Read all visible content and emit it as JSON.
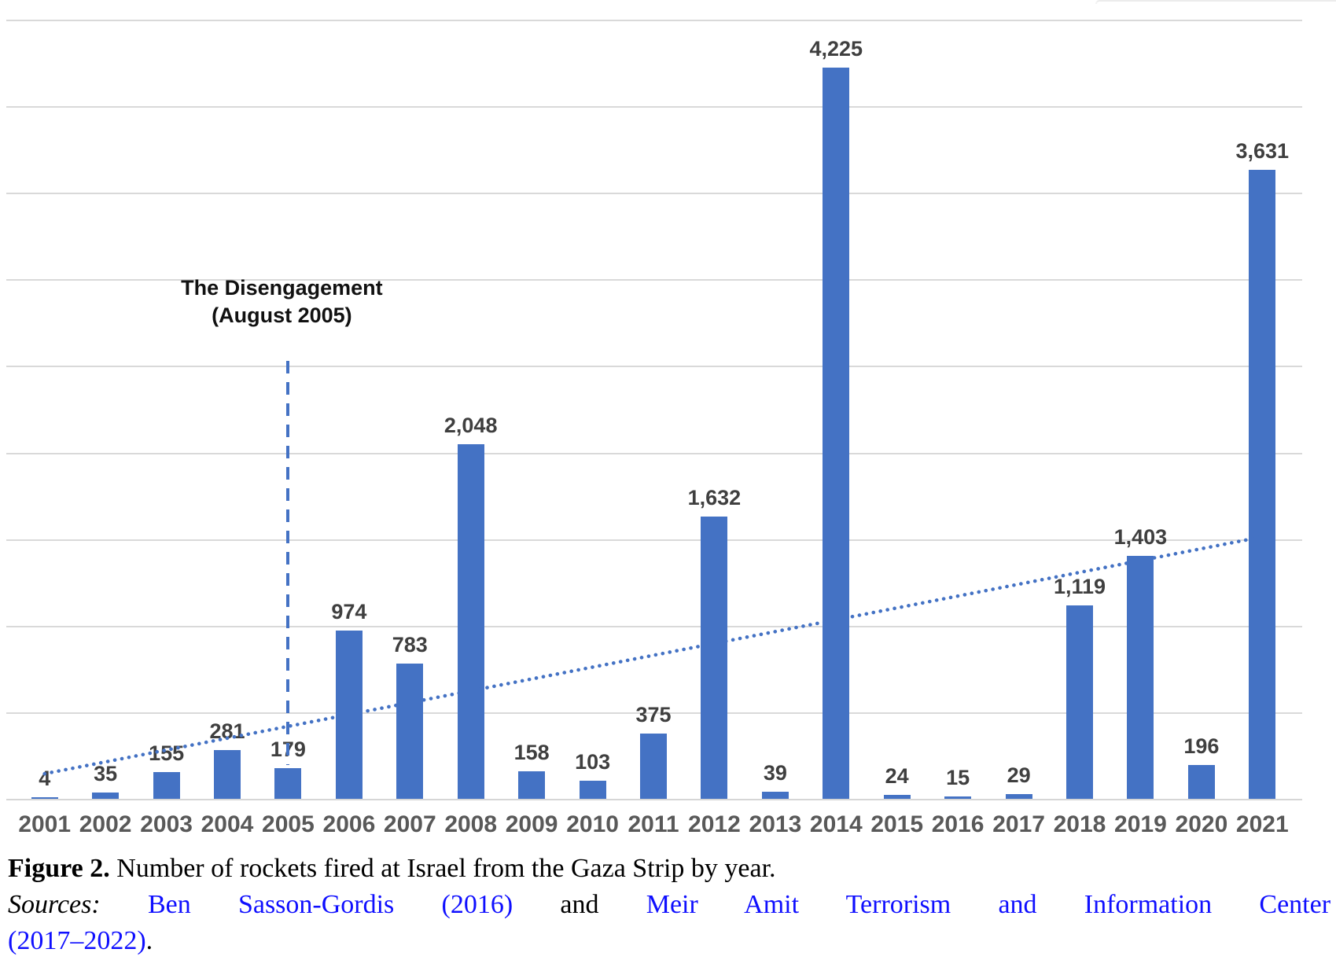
{
  "chart_data": {
    "type": "bar",
    "title": "",
    "xlabel": "",
    "ylabel": "",
    "categories": [
      "2001",
      "2002",
      "2003",
      "2004",
      "2005",
      "2006",
      "2007",
      "2008",
      "2009",
      "2010",
      "2011",
      "2012",
      "2013",
      "2014",
      "2015",
      "2016",
      "2017",
      "2018",
      "2019",
      "2020",
      "2021"
    ],
    "values": [
      4,
      35,
      155,
      281,
      179,
      974,
      783,
      2048,
      158,
      103,
      375,
      1632,
      39,
      4225,
      24,
      15,
      29,
      1119,
      1403,
      196,
      3631
    ],
    "value_labels": [
      "4",
      "35",
      "155",
      "281",
      "179",
      "974",
      "783",
      "2,048",
      "158",
      "103",
      "375",
      "1,632",
      "39",
      "4,225",
      "24",
      "15",
      "29",
      "1,119",
      "1,403",
      "196",
      "3,631"
    ],
    "ylim": [
      0,
      4500
    ],
    "gridline_step": 500,
    "grid": true,
    "legend": false,
    "y_axis_tick_labels": false,
    "bar_color": "#4472c4",
    "gridline_color": "#d9d9d9",
    "value_label_color": "#3f3f3f",
    "axis_label_color": "#595959",
    "trendline": {
      "type": "linear",
      "style": "dotted",
      "color": "#4472c4"
    },
    "annotation": {
      "line1": "The Disengagement",
      "line2": "(August 2005)",
      "category": "2005",
      "marker": "dashed-vertical-line",
      "marker_color": "#4472c4"
    }
  },
  "caption": {
    "figure_label": "Figure 2.",
    "figure_text": "Number of rockets fired at Israel from the Gaza Strip by year.",
    "sources_label": "Sources:",
    "source_link_1": "Ben Sasson-Gordis (2016)",
    "sources_connector": "and",
    "source_link_2": "Meir Amit Terrorism and Information Center",
    "source_link_2_tail": "(2017–2022)",
    "sources_period": ".",
    "link_color": "#0f0fff"
  }
}
